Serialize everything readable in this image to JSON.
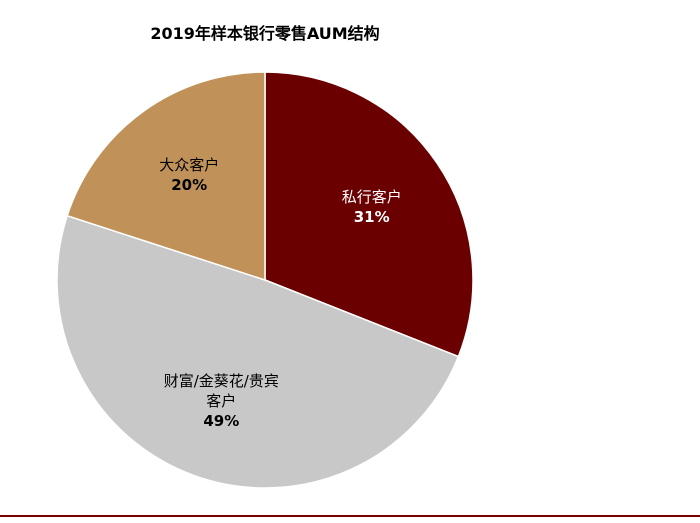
{
  "chart_data": {
    "type": "pie",
    "title": "2019年样本银行零售AUM结构",
    "slices": [
      {
        "label_lines": [
          "私行客户"
        ],
        "value": 31,
        "value_label": "31%",
        "color": "#6b0000",
        "text_color": "#ffffff"
      },
      {
        "label_lines": [
          "财富/金葵花/贵宾",
          "客户"
        ],
        "value": 49,
        "value_label": "49%",
        "color": "#c8c8c8",
        "text_color": "#000000"
      },
      {
        "label_lines": [
          "大众客户"
        ],
        "value": 20,
        "value_label": "20%",
        "color": "#c0925a",
        "text_color": "#000000"
      }
    ],
    "start_angle_deg": 0,
    "direction": "clockwise",
    "legend": "none"
  }
}
